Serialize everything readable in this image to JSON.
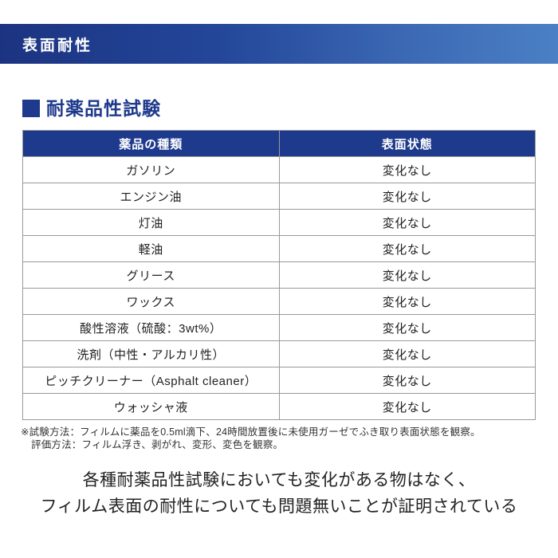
{
  "banner": {
    "title": "表面耐性"
  },
  "section": {
    "marker": "square-bullet",
    "title": "耐薬品性試験"
  },
  "table": {
    "columns": [
      "薬品の種類",
      "表面状態"
    ],
    "rows": [
      [
        "ガソリン",
        "変化なし"
      ],
      [
        "エンジン油",
        "変化なし"
      ],
      [
        "灯油",
        "変化なし"
      ],
      [
        "軽油",
        "変化なし"
      ],
      [
        "グリース",
        "変化なし"
      ],
      [
        "ワックス",
        "変化なし"
      ],
      [
        "酸性溶液（硫酸：3wt%）",
        "変化なし"
      ],
      [
        "洗剤（中性・アルカリ性）",
        "変化なし"
      ],
      [
        "ピッチクリーナー（Asphalt cleaner）",
        "変化なし"
      ],
      [
        "ウォッシャ液",
        "変化なし"
      ]
    ]
  },
  "footnotes": {
    "line1": "※試験方法：フィルムに薬品を0.5ml滴下、24時間放置後に未使用ガーゼでふき取り表面状態を観察。",
    "line2": "評価方法：フィルム浮き、剥がれ、変形、変色を観察。"
  },
  "conclusion": {
    "line1": "各種耐薬品性試験においても変化がある物はなく、",
    "line2": "フィルム表面の耐性についても問題無いことが証明されている"
  },
  "colors": {
    "accent_dark_blue": "#1e3a8c",
    "banner_gradient_start": "#1c3381",
    "banner_gradient_end": "#4b80c5",
    "table_border_gray": "#999999",
    "text_dark": "#222222"
  }
}
